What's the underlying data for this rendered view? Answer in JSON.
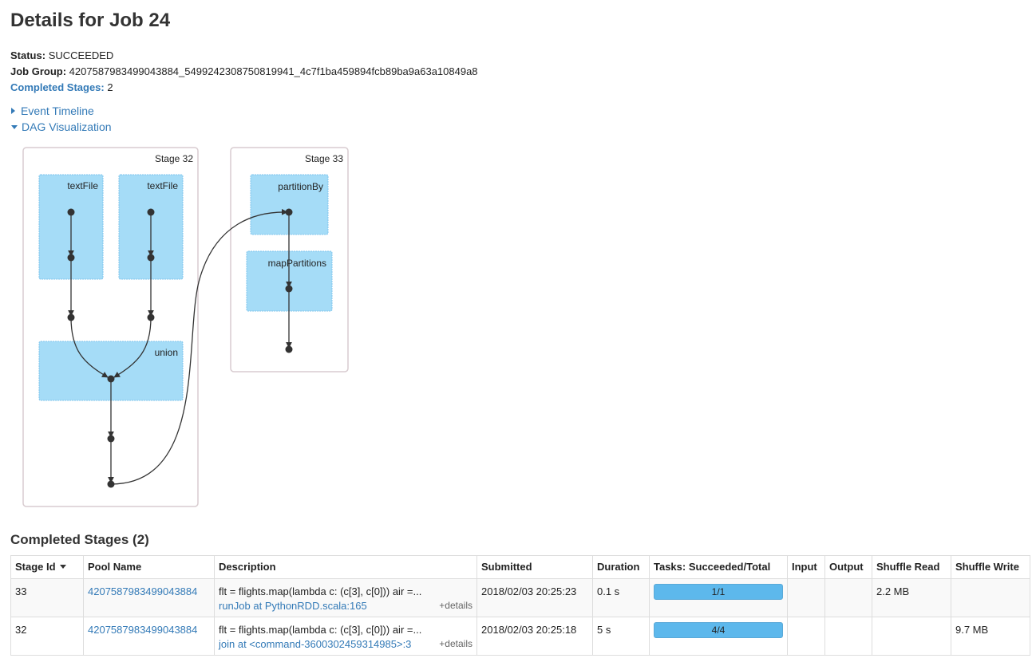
{
  "page": {
    "title": "Details for Job 24",
    "status_label": "Status:",
    "status_value": "SUCCEEDED",
    "job_group_label": "Job Group:",
    "job_group_value": "4207587983499043884_5499242308750819941_4c7f1ba459894fcb89ba9a63a10849a8",
    "completed_stages_label": "Completed Stages:",
    "completed_stages_value": "2",
    "event_timeline": "Event Timeline",
    "dag_visualization": "DAG Visualization"
  },
  "dag": {
    "stage_a": "Stage 32",
    "stage_b": "Stage 33",
    "textfile_1": "textFile",
    "textfile_2": "textFile",
    "union": "union",
    "partitionby": "partitionBy",
    "mappartitions": "mapPartitions"
  },
  "stages_section": {
    "heading": "Completed Stages (2)",
    "headers": [
      "Stage Id",
      "Pool Name",
      "Description",
      "Submitted",
      "Duration",
      "Tasks: Succeeded/Total",
      "Input",
      "Output",
      "Shuffle Read",
      "Shuffle Write"
    ],
    "rows": [
      {
        "stage_id": "33",
        "pool": "4207587983499043884",
        "desc": "flt = flights.map(lambda c: (c[3], c[0])) air =...",
        "call": "runJob at PythonRDD.scala:165",
        "details": "+details",
        "submitted": "2018/02/03 20:25:23",
        "duration": "0.1 s",
        "tasks": "1/1",
        "tasks_fraction": 1.0,
        "input": "",
        "output": "",
        "shuffle_read": "2.2 MB",
        "shuffle_write": ""
      },
      {
        "stage_id": "32",
        "pool": "4207587983499043884",
        "desc": "flt = flights.map(lambda c: (c[3], c[0])) air =...",
        "call": "join at <command-3600302459314985>:3",
        "details": "+details",
        "submitted": "2018/02/03 20:25:18",
        "duration": "5 s",
        "tasks": "4/4",
        "tasks_fraction": 1.0,
        "input": "",
        "output": "",
        "shuffle_read": "",
        "shuffle_write": "9.7 MB"
      }
    ]
  },
  "colors": {
    "link": "#337ab7",
    "dag_node": "#a5dcf7",
    "dag_node_border": "#7fc4ec",
    "progress": "#5db8ec"
  }
}
